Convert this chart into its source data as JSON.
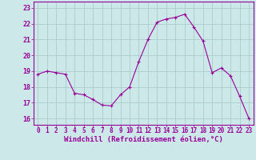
{
  "x": [
    0,
    1,
    2,
    3,
    4,
    5,
    6,
    7,
    8,
    9,
    10,
    11,
    12,
    13,
    14,
    15,
    16,
    17,
    18,
    19,
    20,
    21,
    22,
    23
  ],
  "y": [
    18.8,
    19.0,
    18.9,
    18.8,
    17.6,
    17.5,
    17.2,
    16.85,
    16.8,
    17.5,
    18.0,
    19.6,
    21.0,
    22.1,
    22.3,
    22.4,
    22.6,
    21.8,
    20.9,
    18.9,
    19.2,
    18.7,
    17.4,
    16.0
  ],
  "line_color": "#990099",
  "marker": "+",
  "marker_size": 3,
  "bg_color": "#cce8e8",
  "grid_color": "#aacccc",
  "xlabel": "Windchill (Refroidissement éolien,°C)",
  "ylabel_ticks": [
    16,
    17,
    18,
    19,
    20,
    21,
    22,
    23
  ],
  "xlim": [
    -0.5,
    23.5
  ],
  "ylim": [
    15.6,
    23.4
  ],
  "axis_label_color": "#990099",
  "tick_label_color": "#990099",
  "tick_fontsize": 5.5,
  "xlabel_fontsize": 6.5
}
